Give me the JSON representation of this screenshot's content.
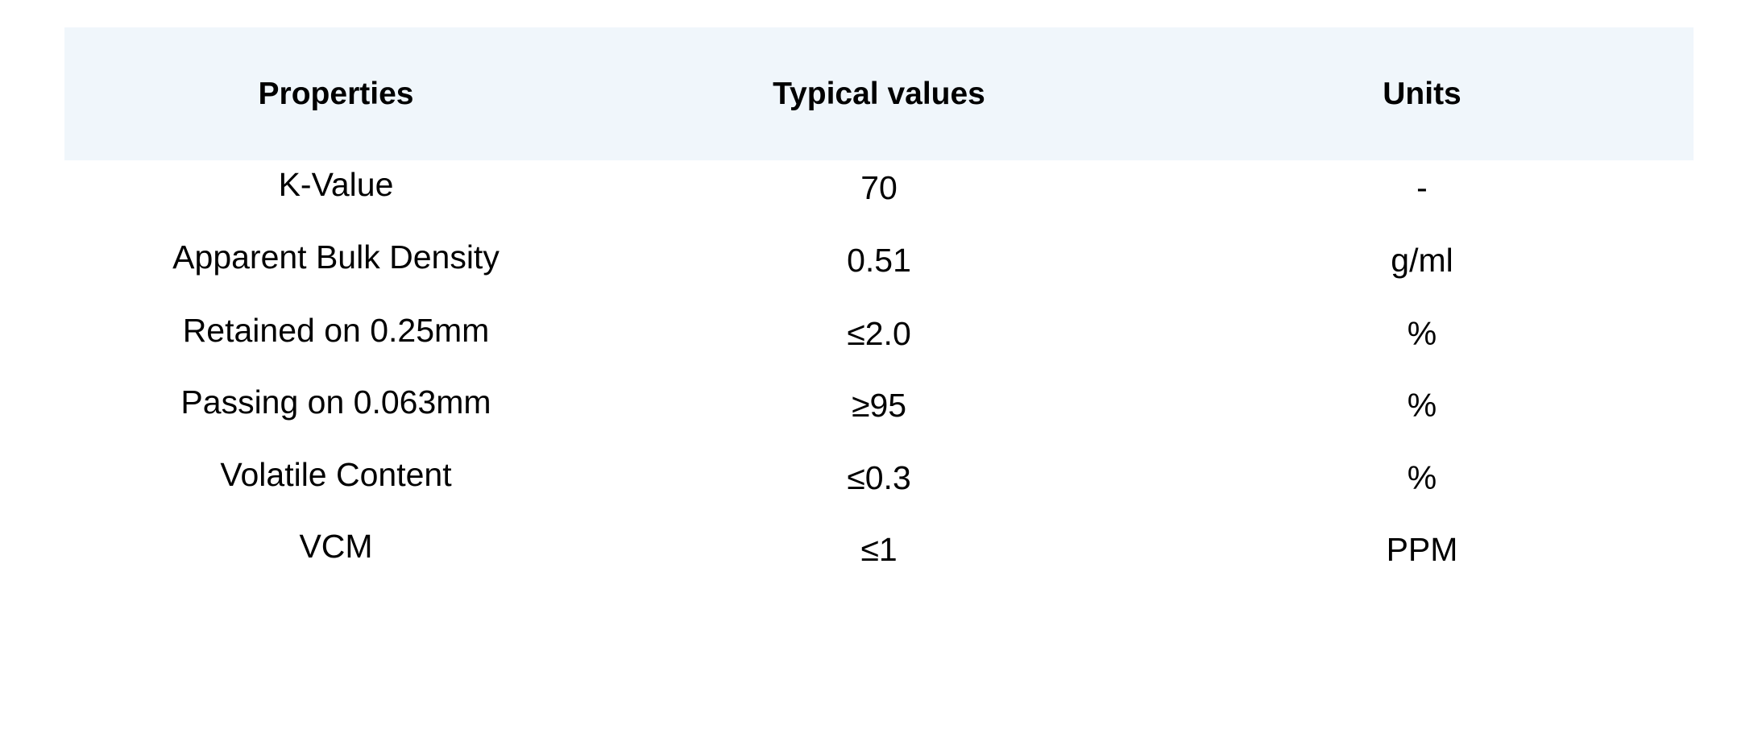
{
  "table": {
    "headers": [
      "Properties",
      "Typical values",
      "Units"
    ],
    "rows": [
      {
        "property": "K-Value",
        "value": "70",
        "unit": "-"
      },
      {
        "property": "Apparent Bulk Density",
        "value": "0.51",
        "unit": "g/ml"
      },
      {
        "property": "Retained on 0.25mm",
        "value": "≤2.0",
        "unit": "%"
      },
      {
        "property": "Passing on 0.063mm",
        "value": "≥95",
        "unit": "%"
      },
      {
        "property": "Volatile Content",
        "value": "≤0.3",
        "unit": "%"
      },
      {
        "property": "VCM",
        "value": "≤1",
        "unit": "PPM"
      }
    ],
    "header_bg": "#f0f6fb"
  }
}
